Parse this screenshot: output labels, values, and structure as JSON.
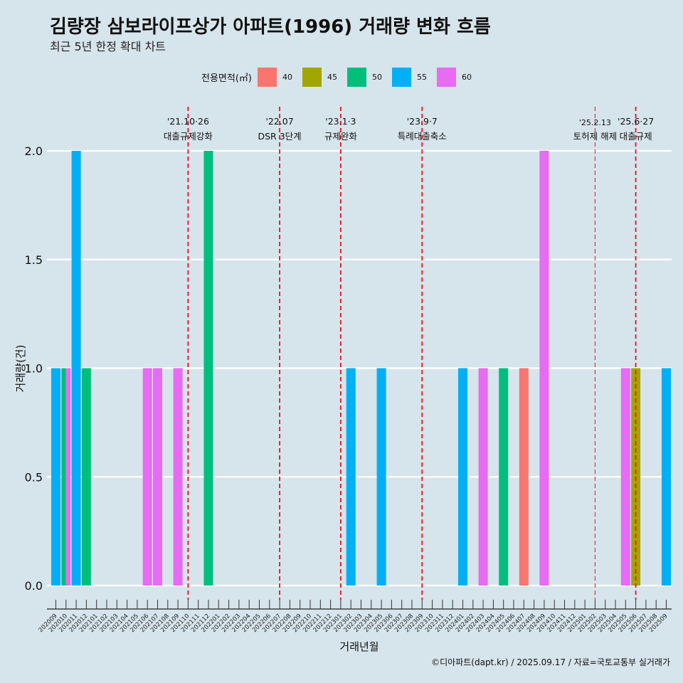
{
  "header": {
    "title": "김량장 삼보라이프상가 아파트(1996) 거래량 변화 흐름",
    "subtitle": "최근 5년 한정 확대 차트"
  },
  "legend": {
    "title": "전용면적(㎡)",
    "items": [
      {
        "label": "40",
        "color": "#f8766d"
      },
      {
        "label": "45",
        "color": "#a3a500"
      },
      {
        "label": "50",
        "color": "#00bf7d"
      },
      {
        "label": "55",
        "color": "#00b0f6"
      },
      {
        "label": "60",
        "color": "#e76bf3"
      }
    ]
  },
  "caption": "©디아파트(dapt.kr) / 2025.09.17 / 자료=국토교통부 실거래가",
  "chart_data": {
    "type": "bar",
    "xlabel": "거래년월",
    "ylabel": "거래량(건)",
    "ylim": [
      0,
      2
    ],
    "yticks": [
      "0.0",
      "0.5",
      "1.0",
      "1.5",
      "2.0"
    ],
    "categories": [
      "202009",
      "202010",
      "202011",
      "202012",
      "202101",
      "202102",
      "202103",
      "202104",
      "202105",
      "202106",
      "202107",
      "202108",
      "202109",
      "202110",
      "202111",
      "202112",
      "202201",
      "202202",
      "202203",
      "202204",
      "202205",
      "202206",
      "202207",
      "202208",
      "202209",
      "202210",
      "202211",
      "202212",
      "202301",
      "202302",
      "202303",
      "202304",
      "202305",
      "202306",
      "202307",
      "202308",
      "202309",
      "202310",
      "202311",
      "202312",
      "202401",
      "202402",
      "202403",
      "202404",
      "202405",
      "202406",
      "202407",
      "202408",
      "202409",
      "202410",
      "202411",
      "202412",
      "202501",
      "202502",
      "202503",
      "202504",
      "202505",
      "202506",
      "202507",
      "202508",
      "202509"
    ],
    "bars": [
      {
        "month": "202009",
        "area": "55",
        "value": 1
      },
      {
        "month": "202010",
        "area": "50",
        "value": 1
      },
      {
        "month": "202010",
        "area": "60",
        "value": 1
      },
      {
        "month": "202011",
        "area": "55",
        "value": 2
      },
      {
        "month": "202012",
        "area": "50",
        "value": 1
      },
      {
        "month": "202106",
        "area": "60",
        "value": 1
      },
      {
        "month": "202107",
        "area": "60",
        "value": 1
      },
      {
        "month": "202109",
        "area": "60",
        "value": 1
      },
      {
        "month": "202112",
        "area": "50",
        "value": 2
      },
      {
        "month": "202302",
        "area": "55",
        "value": 1
      },
      {
        "month": "202305",
        "area": "55",
        "value": 1
      },
      {
        "month": "202401",
        "area": "55",
        "value": 1
      },
      {
        "month": "202403",
        "area": "60",
        "value": 1
      },
      {
        "month": "202405",
        "area": "50",
        "value": 1
      },
      {
        "month": "202407",
        "area": "40",
        "value": 1
      },
      {
        "month": "202409",
        "area": "60",
        "value": 2
      },
      {
        "month": "202505",
        "area": "60",
        "value": 1
      },
      {
        "month": "202506",
        "area": "45",
        "value": 1
      },
      {
        "month": "202509",
        "area": "55",
        "value": 1
      }
    ],
    "events": [
      {
        "month": "202110",
        "date": "'21.10·26",
        "label": "대출규제강화"
      },
      {
        "month": "202207",
        "date": "'22.07",
        "label": "DSR 3단계"
      },
      {
        "month": "202301",
        "date": "'23.1·3",
        "label": "규제완화"
      },
      {
        "month": "202309",
        "date": "'23.9·7",
        "label": "특례대출축소"
      },
      {
        "month": "202502",
        "date": "'25.2.13",
        "label": "토허제 해제"
      },
      {
        "month": "202506",
        "date": "'25.6·27",
        "label": "대출규제"
      }
    ]
  }
}
